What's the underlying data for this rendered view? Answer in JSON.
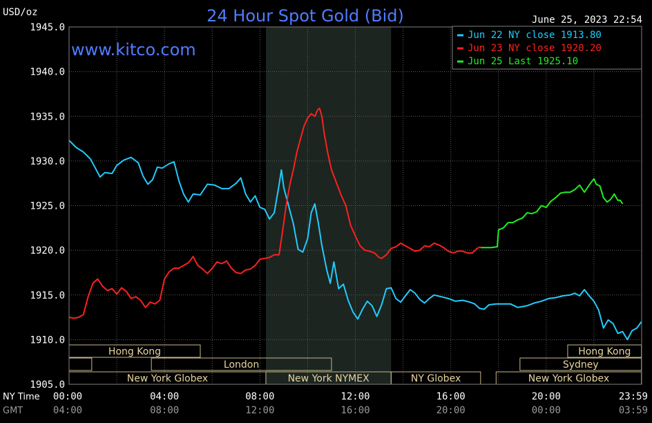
{
  "chart_data": {
    "type": "line",
    "title": "24 Hour Spot Gold (Bid)",
    "watermark": "www.kitco.com",
    "ylabel": "USD/oz",
    "timestamp": "June 25, 2023 22:54",
    "ylim": [
      1905.0,
      1945.0
    ],
    "y_ticks": [
      "1945.0",
      "1940.0",
      "1935.0",
      "1930.0",
      "1925.0",
      "1920.0",
      "1915.0",
      "1910.0",
      "1905.0"
    ],
    "xlim_hours": [
      0,
      24
    ],
    "x_axis_rows": [
      {
        "label": "NY Time",
        "ticks": [
          "00:00",
          "04:00",
          "08:00",
          "12:00",
          "16:00",
          "20:00",
          "23:59"
        ]
      },
      {
        "label": "GMT",
        "ticks": [
          "04:00",
          "08:00",
          "12:00",
          "16:00",
          "20:00",
          "00:00",
          "03:59"
        ]
      }
    ],
    "grid": true,
    "legend_position": "top-right",
    "colors": {
      "background": "#000000",
      "grid": "#606060",
      "axis_text": "#ffffff",
      "title": "#4f7cff",
      "highlight_band": "#1c2520",
      "session_box": "#c8b88a",
      "session_text": "#e8d4a0"
    },
    "highlight_band_hours": [
      8.25,
      13.5
    ],
    "sessions": [
      {
        "row": 0,
        "label": "Hong Kong",
        "start": 0.0,
        "end": 5.5
      },
      {
        "row": 0,
        "label": "Hong Kong",
        "start": 20.9,
        "end": 23.99
      },
      {
        "row": 1,
        "label": "",
        "start": 0.0,
        "end": 0.95
      },
      {
        "row": 1,
        "label": "London",
        "start": 3.45,
        "end": 11.0
      },
      {
        "row": 1,
        "label": "Sydney",
        "start": 18.9,
        "end": 23.99
      },
      {
        "row": 2,
        "label": "New York Globex",
        "start": 0.0,
        "end": 8.25
      },
      {
        "row": 2,
        "label": "New York NYMEX",
        "start": 8.25,
        "end": 13.5
      },
      {
        "row": 2,
        "label": "NY Globex",
        "start": 13.5,
        "end": 17.25
      },
      {
        "row": 2,
        "label": "New York Globex",
        "start": 17.9,
        "end": 23.99
      }
    ],
    "series": [
      {
        "name": "Jun 22 NY close 1913.80",
        "color": "#22ccff",
        "points": [
          [
            0.0,
            1932.3
          ],
          [
            0.3,
            1931.5
          ],
          [
            0.6,
            1931.0
          ],
          [
            0.9,
            1930.2
          ],
          [
            1.1,
            1929.2
          ],
          [
            1.3,
            1928.2
          ],
          [
            1.5,
            1928.7
          ],
          [
            1.8,
            1928.6
          ],
          [
            2.0,
            1929.5
          ],
          [
            2.3,
            1930.1
          ],
          [
            2.6,
            1930.4
          ],
          [
            2.9,
            1929.8
          ],
          [
            3.1,
            1928.3
          ],
          [
            3.3,
            1927.4
          ],
          [
            3.5,
            1927.9
          ],
          [
            3.7,
            1929.3
          ],
          [
            3.9,
            1929.2
          ],
          [
            4.2,
            1929.7
          ],
          [
            4.4,
            1929.9
          ],
          [
            4.6,
            1927.8
          ],
          [
            4.8,
            1926.3
          ],
          [
            5.0,
            1925.4
          ],
          [
            5.2,
            1926.3
          ],
          [
            5.5,
            1926.2
          ],
          [
            5.8,
            1927.4
          ],
          [
            6.1,
            1927.3
          ],
          [
            6.4,
            1926.9
          ],
          [
            6.7,
            1926.9
          ],
          [
            7.0,
            1927.5
          ],
          [
            7.2,
            1928.1
          ],
          [
            7.4,
            1926.3
          ],
          [
            7.6,
            1925.4
          ],
          [
            7.8,
            1926.1
          ],
          [
            8.0,
            1924.8
          ],
          [
            8.2,
            1924.6
          ],
          [
            8.4,
            1923.5
          ],
          [
            8.6,
            1924.2
          ],
          [
            8.8,
            1927.3
          ],
          [
            8.9,
            1929.0
          ],
          [
            9.0,
            1927.0
          ],
          [
            9.2,
            1925.0
          ],
          [
            9.4,
            1923.0
          ],
          [
            9.6,
            1920.1
          ],
          [
            9.8,
            1919.8
          ],
          [
            10.0,
            1921.3
          ],
          [
            10.15,
            1924.2
          ],
          [
            10.3,
            1925.2
          ],
          [
            10.45,
            1923.0
          ],
          [
            10.6,
            1920.5
          ],
          [
            10.8,
            1917.8
          ],
          [
            10.95,
            1916.3
          ],
          [
            11.1,
            1918.7
          ],
          [
            11.3,
            1915.7
          ],
          [
            11.5,
            1916.2
          ],
          [
            11.7,
            1914.4
          ],
          [
            11.9,
            1913.1
          ],
          [
            12.1,
            1912.3
          ],
          [
            12.3,
            1913.4
          ],
          [
            12.5,
            1914.3
          ],
          [
            12.7,
            1913.8
          ],
          [
            12.9,
            1912.6
          ],
          [
            13.1,
            1913.9
          ],
          [
            13.3,
            1915.7
          ],
          [
            13.5,
            1915.8
          ],
          [
            13.7,
            1914.6
          ],
          [
            13.9,
            1914.2
          ],
          [
            14.1,
            1914.9
          ],
          [
            14.3,
            1915.6
          ],
          [
            14.5,
            1915.2
          ],
          [
            14.7,
            1914.5
          ],
          [
            14.9,
            1914.1
          ],
          [
            15.1,
            1914.6
          ],
          [
            15.3,
            1915.0
          ],
          [
            15.6,
            1914.8
          ],
          [
            15.9,
            1914.6
          ],
          [
            16.2,
            1914.3
          ],
          [
            16.5,
            1914.4
          ],
          [
            16.8,
            1914.2
          ],
          [
            17.0,
            1914.0
          ],
          [
            17.2,
            1913.5
          ],
          [
            17.4,
            1913.4
          ],
          [
            17.6,
            1913.9
          ],
          [
            17.9,
            1914.0
          ],
          [
            18.2,
            1914.0
          ],
          [
            18.5,
            1914.0
          ],
          [
            18.8,
            1913.6
          ],
          [
            19.0,
            1913.7
          ],
          [
            19.2,
            1913.8
          ],
          [
            19.5,
            1914.1
          ],
          [
            19.8,
            1914.3
          ],
          [
            20.1,
            1914.6
          ],
          [
            20.4,
            1914.7
          ],
          [
            20.7,
            1914.9
          ],
          [
            21.0,
            1915.0
          ],
          [
            21.2,
            1915.2
          ],
          [
            21.4,
            1914.9
          ],
          [
            21.6,
            1915.6
          ],
          [
            21.8,
            1914.9
          ],
          [
            22.0,
            1914.3
          ],
          [
            22.2,
            1913.3
          ],
          [
            22.4,
            1911.3
          ],
          [
            22.6,
            1912.2
          ],
          [
            22.8,
            1911.8
          ],
          [
            23.0,
            1910.7
          ],
          [
            23.2,
            1910.9
          ],
          [
            23.4,
            1910.0
          ],
          [
            23.6,
            1911.0
          ],
          [
            23.8,
            1911.3
          ],
          [
            23.99,
            1912.0
          ]
        ]
      },
      {
        "name": "Jun 23 NY close 1920.20",
        "color": "#ff2020",
        "points": [
          [
            0.0,
            1912.5
          ],
          [
            0.2,
            1912.4
          ],
          [
            0.4,
            1912.5
          ],
          [
            0.6,
            1912.8
          ],
          [
            0.8,
            1914.8
          ],
          [
            1.0,
            1916.3
          ],
          [
            1.2,
            1916.8
          ],
          [
            1.4,
            1916.0
          ],
          [
            1.6,
            1915.5
          ],
          [
            1.8,
            1915.7
          ],
          [
            2.0,
            1915.1
          ],
          [
            2.2,
            1915.8
          ],
          [
            2.4,
            1915.4
          ],
          [
            2.6,
            1914.6
          ],
          [
            2.8,
            1914.8
          ],
          [
            3.0,
            1914.4
          ],
          [
            3.2,
            1913.6
          ],
          [
            3.4,
            1914.2
          ],
          [
            3.6,
            1914.0
          ],
          [
            3.8,
            1914.4
          ],
          [
            4.0,
            1916.8
          ],
          [
            4.2,
            1917.6
          ],
          [
            4.4,
            1918.0
          ],
          [
            4.6,
            1918.0
          ],
          [
            4.8,
            1918.3
          ],
          [
            5.0,
            1918.6
          ],
          [
            5.2,
            1919.3
          ],
          [
            5.4,
            1918.3
          ],
          [
            5.6,
            1917.9
          ],
          [
            5.8,
            1917.4
          ],
          [
            6.0,
            1918.0
          ],
          [
            6.2,
            1918.7
          ],
          [
            6.4,
            1918.5
          ],
          [
            6.6,
            1918.8
          ],
          [
            6.8,
            1918.0
          ],
          [
            7.0,
            1917.5
          ],
          [
            7.2,
            1917.4
          ],
          [
            7.4,
            1917.8
          ],
          [
            7.6,
            1917.9
          ],
          [
            7.8,
            1918.3
          ],
          [
            8.0,
            1919.0
          ],
          [
            8.2,
            1919.1
          ],
          [
            8.4,
            1919.2
          ],
          [
            8.6,
            1919.5
          ],
          [
            8.8,
            1919.5
          ],
          [
            8.95,
            1922.1
          ],
          [
            9.1,
            1925.0
          ],
          [
            9.25,
            1927.3
          ],
          [
            9.4,
            1929.0
          ],
          [
            9.55,
            1931.0
          ],
          [
            9.7,
            1932.5
          ],
          [
            9.85,
            1933.9
          ],
          [
            10.0,
            1934.8
          ],
          [
            10.15,
            1935.3
          ],
          [
            10.3,
            1935.0
          ],
          [
            10.42,
            1935.7
          ],
          [
            10.5,
            1935.9
          ],
          [
            10.6,
            1935.0
          ],
          [
            10.7,
            1933.0
          ],
          [
            10.85,
            1930.8
          ],
          [
            11.0,
            1929.0
          ],
          [
            11.2,
            1927.6
          ],
          [
            11.4,
            1926.2
          ],
          [
            11.6,
            1925.0
          ],
          [
            11.8,
            1922.8
          ],
          [
            12.0,
            1921.6
          ],
          [
            12.2,
            1920.5
          ],
          [
            12.4,
            1920.0
          ],
          [
            12.6,
            1919.9
          ],
          [
            12.8,
            1919.7
          ],
          [
            13.0,
            1919.2
          ],
          [
            13.1,
            1919.1
          ],
          [
            13.3,
            1919.5
          ],
          [
            13.5,
            1920.2
          ],
          [
            13.7,
            1920.4
          ],
          [
            13.9,
            1920.8
          ],
          [
            14.1,
            1920.5
          ],
          [
            14.3,
            1920.2
          ],
          [
            14.5,
            1919.9
          ],
          [
            14.7,
            1920.0
          ],
          [
            14.9,
            1920.5
          ],
          [
            15.1,
            1920.4
          ],
          [
            15.3,
            1920.8
          ],
          [
            15.5,
            1920.6
          ],
          [
            15.7,
            1920.3
          ],
          [
            15.9,
            1919.9
          ],
          [
            16.1,
            1919.7
          ],
          [
            16.3,
            1919.9
          ],
          [
            16.5,
            1919.9
          ],
          [
            16.7,
            1919.7
          ],
          [
            16.9,
            1919.7
          ],
          [
            17.1,
            1920.2
          ],
          [
            17.25,
            1920.4
          ]
        ]
      },
      {
        "name": "Jun 25 Last 1925.10",
        "color": "#22ee22",
        "points": [
          [
            17.25,
            1920.3
          ],
          [
            17.5,
            1920.3
          ],
          [
            17.7,
            1920.3
          ],
          [
            17.95,
            1920.4
          ],
          [
            18.0,
            1922.3
          ],
          [
            18.2,
            1922.5
          ],
          [
            18.4,
            1923.1
          ],
          [
            18.6,
            1923.1
          ],
          [
            18.8,
            1923.4
          ],
          [
            19.0,
            1923.6
          ],
          [
            19.2,
            1924.2
          ],
          [
            19.4,
            1924.1
          ],
          [
            19.6,
            1924.3
          ],
          [
            19.8,
            1925.0
          ],
          [
            20.0,
            1924.8
          ],
          [
            20.2,
            1925.5
          ],
          [
            20.4,
            1925.9
          ],
          [
            20.6,
            1926.4
          ],
          [
            20.8,
            1926.5
          ],
          [
            21.0,
            1926.5
          ],
          [
            21.2,
            1926.8
          ],
          [
            21.4,
            1927.3
          ],
          [
            21.6,
            1926.5
          ],
          [
            21.8,
            1927.3
          ],
          [
            22.0,
            1928.0
          ],
          [
            22.1,
            1927.4
          ],
          [
            22.25,
            1927.2
          ],
          [
            22.4,
            1925.9
          ],
          [
            22.55,
            1925.4
          ],
          [
            22.7,
            1925.7
          ],
          [
            22.85,
            1926.3
          ],
          [
            23.0,
            1925.6
          ],
          [
            23.1,
            1925.6
          ],
          [
            23.2,
            1925.2
          ]
        ]
      }
    ]
  }
}
